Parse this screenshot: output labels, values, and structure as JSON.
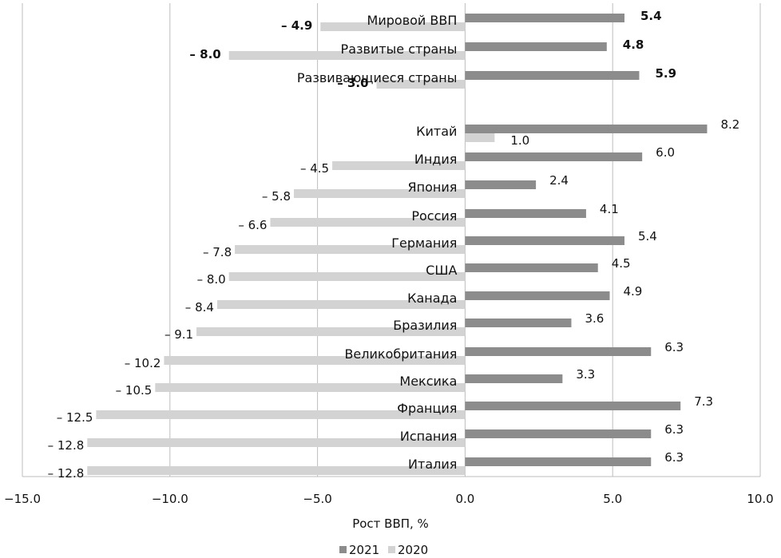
{
  "chart_data": {
    "type": "bar",
    "orientation": "horizontal",
    "xlabel": "Рост ВВП, %",
    "xlim": [
      -15,
      10
    ],
    "xticks": [
      "−15.0",
      "−10.0",
      "−5.0",
      "0.0",
      "5.0",
      "10.0"
    ],
    "grid": true,
    "legend_position": "bottom",
    "colors": {
      "2021": "#8c8c8c",
      "2020": "#d3d3d3",
      "grid": "#bdbdbd"
    },
    "series": [
      {
        "name": "2021",
        "color": "#8c8c8c"
      },
      {
        "name": "2020",
        "color": "#d3d3d3"
      }
    ],
    "summary_label_style": "bold",
    "categories": [
      {
        "name": "Мировой ВВП",
        "summary": true,
        "v2021": 5.4,
        "v2020": -4.9,
        "l2021": "5.4",
        "l2020": "– 4.9"
      },
      {
        "name": "Развитые страны",
        "summary": true,
        "v2021": 4.8,
        "v2020": -8.0,
        "l2021": "4.8",
        "l2020": "– 8.0"
      },
      {
        "name": "Развивающиеся страны",
        "summary": true,
        "v2021": 5.9,
        "v2020": -3.0,
        "l2021": "5.9",
        "l2020": "– 3.0"
      },
      {
        "name": "Китай",
        "v2021": 8.2,
        "v2020": 1.0,
        "l2021": "8.2",
        "l2020": "1.0"
      },
      {
        "name": "Индия",
        "v2021": 6.0,
        "v2020": -4.5,
        "l2021": "6.0",
        "l2020": "– 4.5"
      },
      {
        "name": "Япония",
        "v2021": 2.4,
        "v2020": -5.8,
        "l2021": "2.4",
        "l2020": "– 5.8"
      },
      {
        "name": "Россия",
        "v2021": 4.1,
        "v2020": -6.6,
        "l2021": "4.1",
        "l2020": "– 6.6"
      },
      {
        "name": "Германия",
        "v2021": 5.4,
        "v2020": -7.8,
        "l2021": "5.4",
        "l2020": "– 7.8"
      },
      {
        "name": "США",
        "v2021": 4.5,
        "v2020": -8.0,
        "l2021": "4.5",
        "l2020": "– 8.0"
      },
      {
        "name": "Канада",
        "v2021": 4.9,
        "v2020": -8.4,
        "l2021": "4.9",
        "l2020": "– 8.4"
      },
      {
        "name": "Бразилия",
        "v2021": 3.6,
        "v2020": -9.1,
        "l2021": "3.6",
        "l2020": "– 9.1"
      },
      {
        "name": "Великобритания",
        "v2021": 6.3,
        "v2020": -10.2,
        "l2021": "6.3",
        "l2020": "– 10.2"
      },
      {
        "name": "Мексика",
        "v2021": 3.3,
        "v2020": -10.5,
        "l2021": "3.3",
        "l2020": "– 10.5"
      },
      {
        "name": "Франция",
        "v2021": 7.3,
        "v2020": -12.5,
        "l2021": "7.3",
        "l2020": "– 12.5"
      },
      {
        "name": "Испания",
        "v2021": 6.3,
        "v2020": -12.8,
        "l2021": "6.3",
        "l2020": "– 12.8"
      },
      {
        "name": "Италия",
        "v2021": 6.3,
        "v2020": -12.8,
        "l2021": "6.3",
        "l2020": "– 12.8"
      }
    ]
  }
}
